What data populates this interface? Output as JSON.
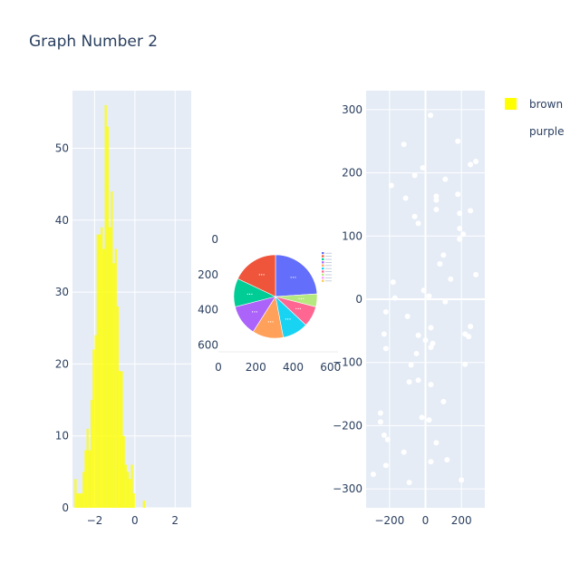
{
  "figure": {
    "title": "Graph Number 2",
    "background": "#ffffff",
    "plot_background": "#e5ecf6",
    "text_color": "#2a3f5f",
    "grid_color": "#ffffff"
  },
  "chart_data": [
    {
      "type": "histogram",
      "series": [
        {
          "name": "brown",
          "color": "#ffff00"
        }
      ],
      "xlim": [
        -3.1,
        2.8
      ],
      "ylim": [
        0,
        58
      ],
      "xticks": [
        -2,
        0,
        2
      ],
      "yticks": [
        0,
        10,
        20,
        30,
        40,
        50
      ],
      "tick_labels_x": [
        "−2",
        "0",
        "2"
      ],
      "tick_labels_y": [
        "0",
        "10",
        "20",
        "30",
        "40",
        "50"
      ],
      "bin_width": 0.1,
      "bins_start": -3.1,
      "values": [
        0,
        4,
        2,
        2,
        2,
        5,
        8,
        11,
        8,
        15,
        22,
        24,
        38,
        38,
        39,
        36,
        56,
        53,
        39,
        44,
        34,
        36,
        28,
        19,
        19,
        10,
        6,
        5,
        4,
        6,
        2,
        0,
        0,
        0,
        0,
        1
      ],
      "grid": true
    },
    {
      "type": "pie",
      "values": [
        24,
        5,
        8,
        10,
        12,
        12,
        11,
        18
      ],
      "colors": [
        "#636efa",
        "#b6e880",
        "#ff6692",
        "#19d3f3",
        "#ffa15a",
        "#ab63fa",
        "#00cc96",
        "#ef553b"
      ],
      "slice_labels": [
        "•••",
        "•••",
        "•••",
        "•••",
        "•••",
        "•••",
        "•••",
        "•••"
      ],
      "legend_colors": [
        "#636efa",
        "#ef553b",
        "#00cc96",
        "#ab63fa",
        "#ffa15a",
        "#19d3f3",
        "#ff6692",
        "#b6e880",
        "#ff97ff",
        "#fecb52"
      ],
      "xticks": [
        0,
        200,
        400,
        600
      ],
      "yticks": [
        0,
        200,
        400,
        600
      ],
      "tick_labels_x": [
        "0",
        "200",
        "400",
        "600"
      ],
      "tick_labels_y": [
        "0",
        "200",
        "400",
        "600"
      ],
      "xlim": [
        0,
        640
      ],
      "ylim": [
        0,
        640
      ]
    },
    {
      "type": "scatter",
      "series": [
        {
          "name": "purple",
          "color": "#ffffff"
        }
      ],
      "xlim": [
        -330,
        330
      ],
      "ylim": [
        -330,
        330
      ],
      "xticks": [
        -200,
        0,
        200
      ],
      "yticks": [
        -300,
        -200,
        -100,
        0,
        100,
        200,
        300
      ],
      "tick_labels_x": [
        "−200",
        "0",
        "200"
      ],
      "tick_labels_y": [
        "−300",
        "−200",
        "−100",
        "0",
        "100",
        "200",
        "300"
      ],
      "grid": true,
      "zeroline": true,
      "points": [
        [
          28,
          291
        ],
        [
          -120,
          245
        ],
        [
          180,
          250
        ],
        [
          -15,
          208
        ],
        [
          -60,
          196
        ],
        [
          280,
          218
        ],
        [
          250,
          213
        ],
        [
          -190,
          180
        ],
        [
          110,
          190
        ],
        [
          180,
          166
        ],
        [
          -110,
          160
        ],
        [
          60,
          163
        ],
        [
          60,
          157
        ],
        [
          60,
          142
        ],
        [
          250,
          140
        ],
        [
          190,
          136
        ],
        [
          -60,
          131
        ],
        [
          -40,
          120
        ],
        [
          190,
          112
        ],
        [
          210,
          103
        ],
        [
          190,
          95
        ],
        [
          80,
          56
        ],
        [
          100,
          70
        ],
        [
          140,
          32
        ],
        [
          280,
          39
        ],
        [
          -180,
          27
        ],
        [
          -10,
          14
        ],
        [
          20,
          5
        ],
        [
          -170,
          2
        ],
        [
          110,
          -4
        ],
        [
          -220,
          -20
        ],
        [
          -100,
          -27
        ],
        [
          -230,
          -55
        ],
        [
          30,
          -45
        ],
        [
          -40,
          -57
        ],
        [
          0,
          -65
        ],
        [
          250,
          -43
        ],
        [
          220,
          -55
        ],
        [
          240,
          -59
        ],
        [
          40,
          -70
        ],
        [
          30,
          -76
        ],
        [
          -220,
          -78
        ],
        [
          -50,
          -86
        ],
        [
          220,
          -103
        ],
        [
          -80,
          -104
        ],
        [
          -40,
          -128
        ],
        [
          -90,
          -131
        ],
        [
          30,
          -135
        ],
        [
          100,
          -162
        ],
        [
          -20,
          -187
        ],
        [
          20,
          -191
        ],
        [
          -250,
          -180
        ],
        [
          -250,
          -194
        ],
        [
          -230,
          -215
        ],
        [
          -210,
          -222
        ],
        [
          60,
          -227
        ],
        [
          -120,
          -242
        ],
        [
          120,
          -254
        ],
        [
          30,
          -257
        ],
        [
          -220,
          -263
        ],
        [
          -290,
          -277
        ],
        [
          200,
          -286
        ],
        [
          -90,
          -290
        ]
      ]
    }
  ],
  "legend": [
    {
      "name": "brown",
      "swatch": "#ffff00",
      "marker": "square"
    },
    {
      "name": "purple",
      "swatch": "#ffffff",
      "marker": "circle"
    }
  ]
}
